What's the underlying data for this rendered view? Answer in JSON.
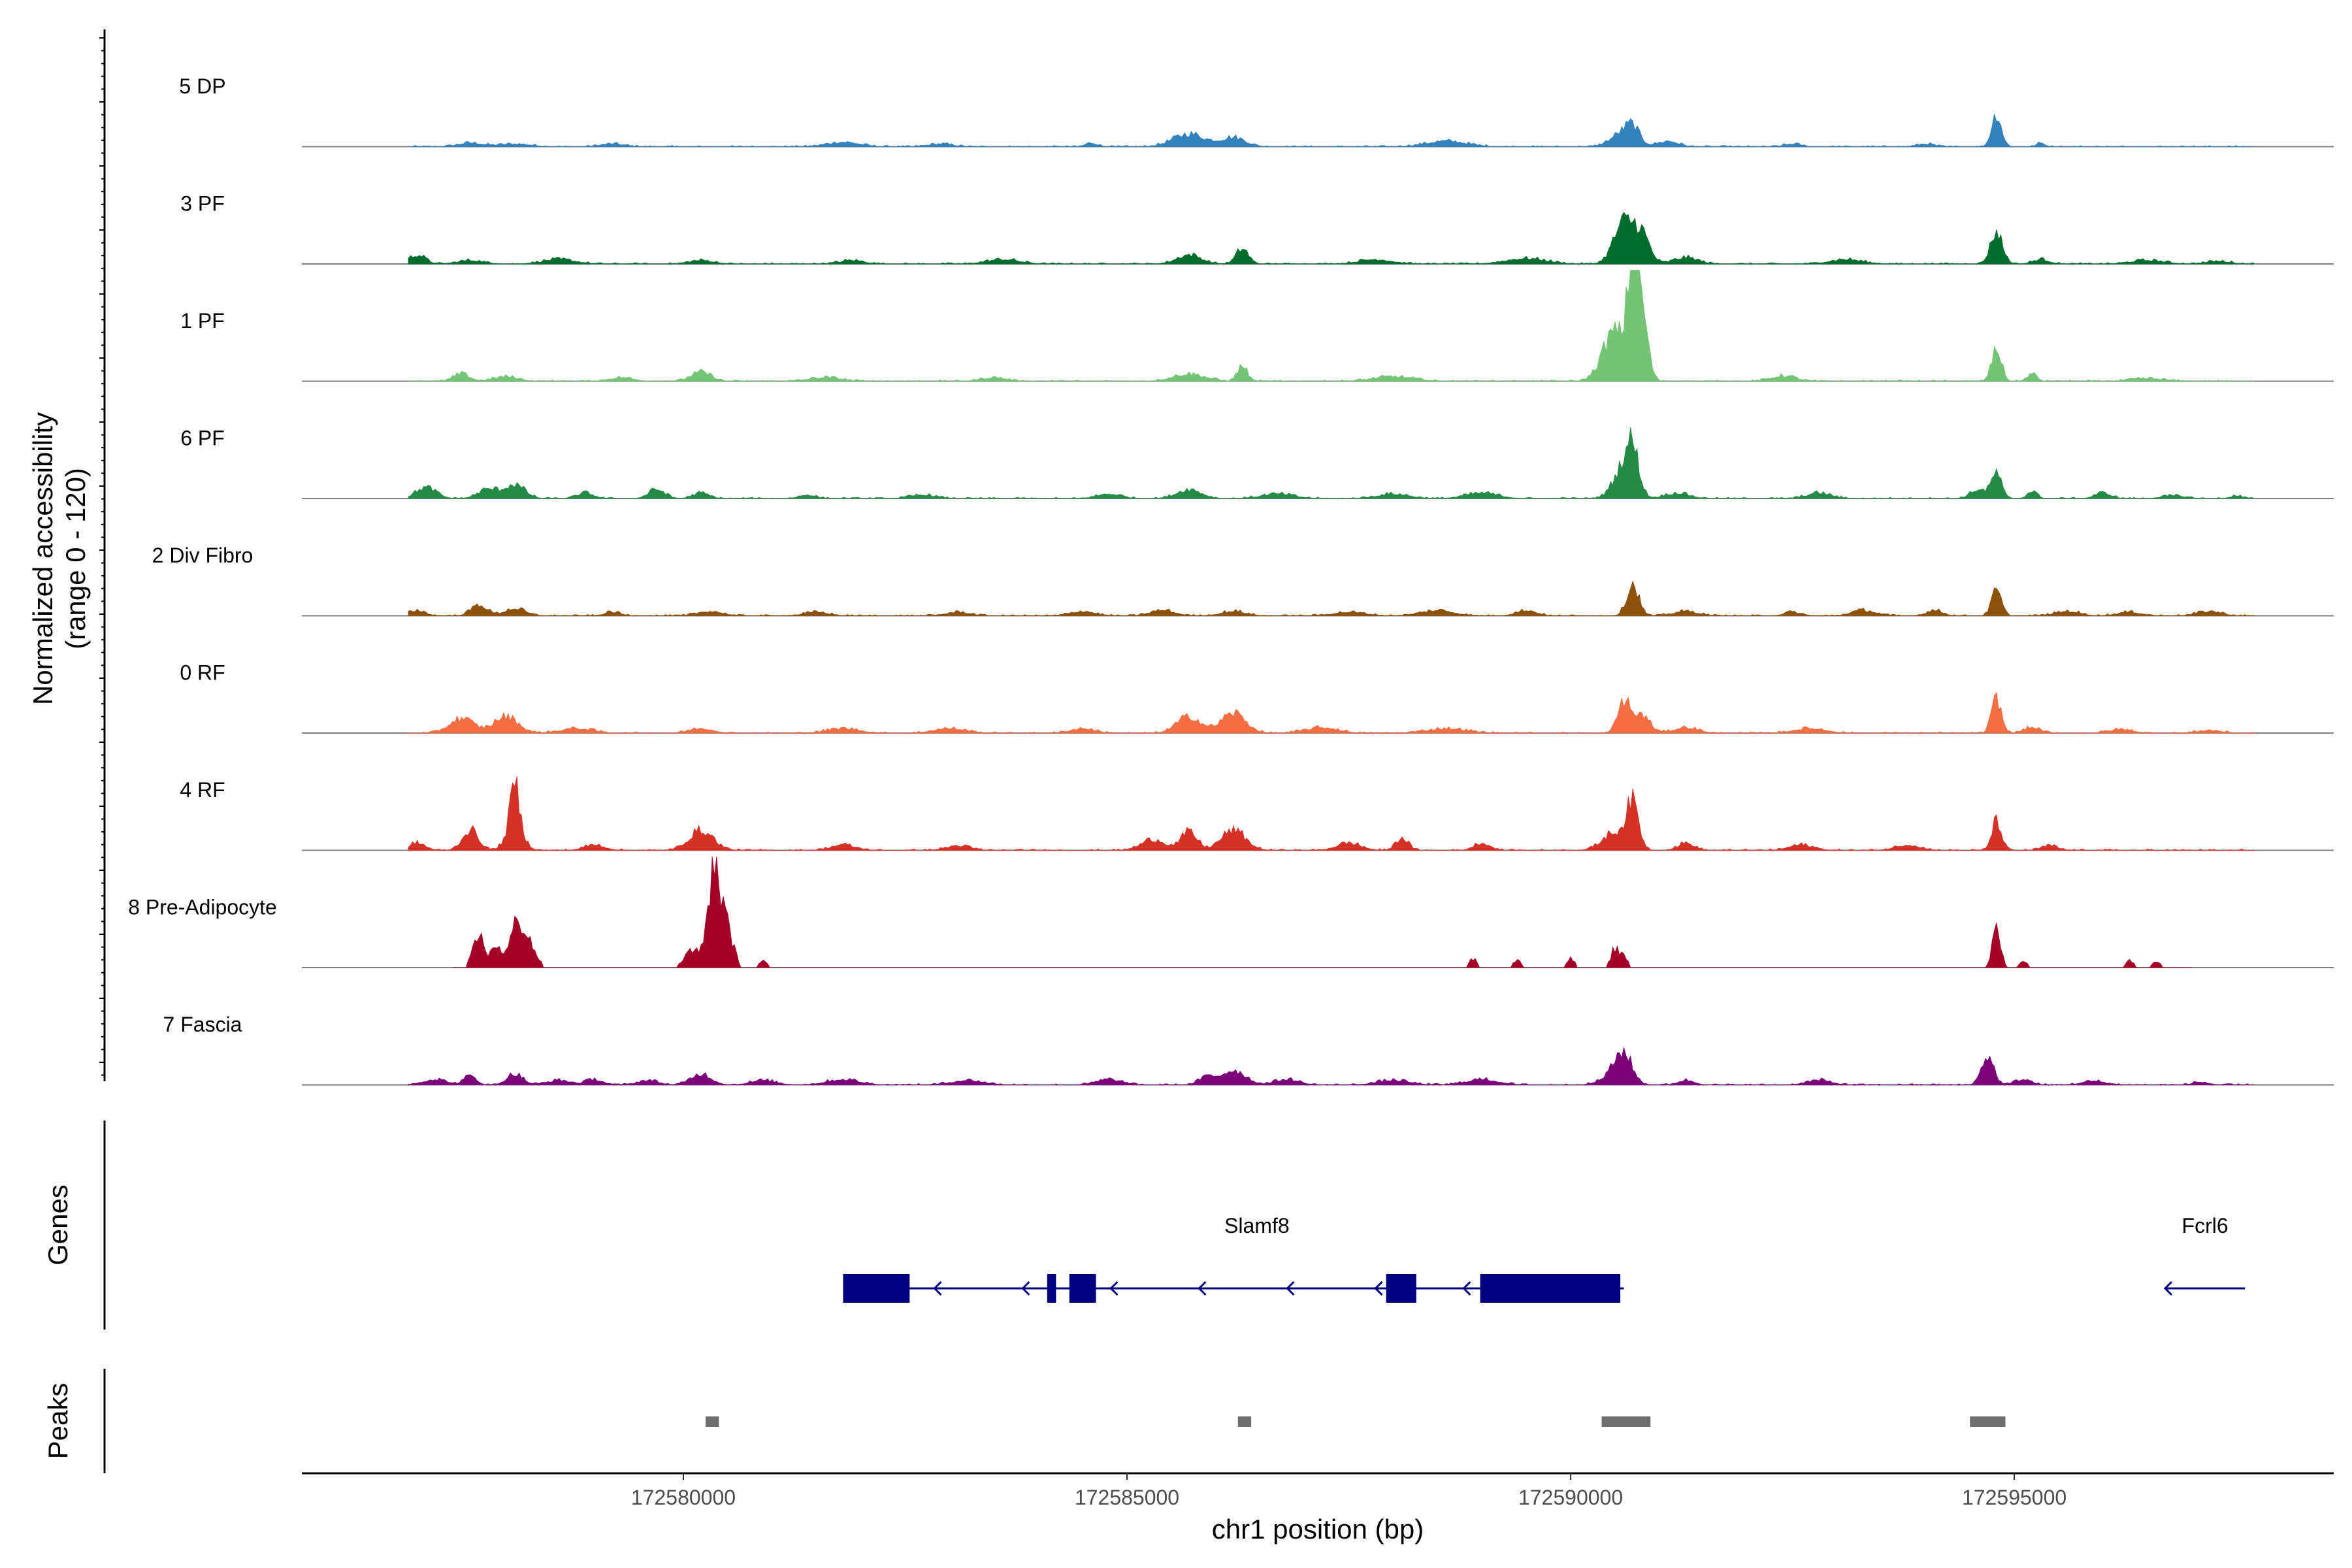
{
  "chart_data": {
    "type": "area",
    "chromosome": "chr1",
    "xlabel": "chr1 position (bp)",
    "ylabel_line1": "Normalized accessibility",
    "ylabel_line2": "(range 0 - 120)",
    "ylim": [
      0,
      120
    ],
    "xlim": [
      172575700,
      172598600
    ],
    "x_ticks": [
      {
        "value": 172580000,
        "label": "172580000"
      },
      {
        "value": 172585000,
        "label": "172585000"
      },
      {
        "value": 172590000,
        "label": "172590000"
      },
      {
        "value": 172595000,
        "label": "172595000"
      }
    ],
    "genes_label": "Genes",
    "peaks_label": "Peaks",
    "tracks": [
      {
        "name": "5 DP",
        "color": "#3182BD",
        "range": [
          176900,
          197700
        ],
        "peaks": [
          [
            177600,
            300,
            4
          ],
          [
            178100,
            400,
            3
          ],
          [
            179200,
            300,
            3
          ],
          [
            181800,
            400,
            5
          ],
          [
            182900,
            300,
            3
          ],
          [
            184600,
            150,
            4
          ],
          [
            185700,
            400,
            14
          ],
          [
            186200,
            300,
            10
          ],
          [
            188600,
            500,
            6
          ],
          [
            190600,
            300,
            16
          ],
          [
            190700,
            150,
            13
          ],
          [
            191100,
            250,
            6
          ],
          [
            192500,
            200,
            3
          ],
          [
            194000,
            200,
            3
          ],
          [
            194800,
            120,
            36
          ],
          [
            195300,
            100,
            4
          ]
        ]
      },
      {
        "name": "3 PF",
        "color": "#006D2C",
        "range": [
          176900,
          197700
        ],
        "peaks": [
          [
            177000,
            200,
            10
          ],
          [
            177600,
            300,
            4
          ],
          [
            178600,
            400,
            5
          ],
          [
            180200,
            300,
            4
          ],
          [
            181900,
            300,
            4
          ],
          [
            183600,
            400,
            5
          ],
          [
            185700,
            300,
            10
          ],
          [
            186300,
            150,
            17
          ],
          [
            187800,
            400,
            5
          ],
          [
            189500,
            500,
            6
          ],
          [
            190600,
            250,
            45
          ],
          [
            190800,
            200,
            30
          ],
          [
            191300,
            300,
            7
          ],
          [
            193100,
            400,
            5
          ],
          [
            194800,
            150,
            35
          ],
          [
            195300,
            200,
            5
          ],
          [
            196500,
            400,
            4
          ],
          [
            197300,
            300,
            3
          ]
        ]
      },
      {
        "name": "1 PF",
        "color": "#74C476",
        "range": [
          176900,
          197700
        ],
        "peaks": [
          [
            177500,
            200,
            8
          ],
          [
            178000,
            300,
            5
          ],
          [
            179300,
            300,
            4
          ],
          [
            180200,
            250,
            10
          ],
          [
            181600,
            400,
            4
          ],
          [
            183500,
            300,
            4
          ],
          [
            185700,
            400,
            8
          ],
          [
            186300,
            120,
            17
          ],
          [
            188000,
            500,
            5
          ],
          [
            190500,
            300,
            55
          ],
          [
            190700,
            120,
            120
          ],
          [
            190800,
            150,
            75
          ],
          [
            192400,
            300,
            6
          ],
          [
            194800,
            120,
            36
          ],
          [
            195200,
            120,
            8
          ],
          [
            196500,
            400,
            3
          ]
        ]
      },
      {
        "name": "6 PF",
        "color": "#238B45",
        "range": [
          176900,
          197700
        ],
        "peaks": [
          [
            177100,
            250,
            12
          ],
          [
            177800,
            250,
            10
          ],
          [
            178100,
            250,
            15
          ],
          [
            178900,
            200,
            6
          ],
          [
            179700,
            200,
            10
          ],
          [
            180200,
            200,
            6
          ],
          [
            181400,
            200,
            4
          ],
          [
            182700,
            300,
            4
          ],
          [
            184800,
            300,
            5
          ],
          [
            185700,
            300,
            10
          ],
          [
            186700,
            400,
            5
          ],
          [
            188000,
            400,
            5
          ],
          [
            189000,
            400,
            6
          ],
          [
            190600,
            250,
            35
          ],
          [
            190700,
            150,
            40
          ],
          [
            191200,
            300,
            6
          ],
          [
            192800,
            300,
            6
          ],
          [
            194600,
            200,
            10
          ],
          [
            194800,
            120,
            28
          ],
          [
            195200,
            120,
            8
          ],
          [
            196000,
            200,
            6
          ],
          [
            196800,
            300,
            3
          ],
          [
            197500,
            150,
            3
          ]
        ]
      },
      {
        "name": "2 Div Fibro",
        "color": "#8C510A",
        "range": [
          176900,
          197700
        ],
        "peaks": [
          [
            177000,
            200,
            6
          ],
          [
            177700,
            200,
            12
          ],
          [
            178100,
            250,
            8
          ],
          [
            179200,
            200,
            4
          ],
          [
            180300,
            300,
            5
          ],
          [
            181500,
            300,
            4
          ],
          [
            183100,
            300,
            4
          ],
          [
            184500,
            300,
            5
          ],
          [
            185400,
            300,
            6
          ],
          [
            186200,
            300,
            5
          ],
          [
            187500,
            400,
            4
          ],
          [
            188500,
            400,
            6
          ],
          [
            189500,
            250,
            6
          ],
          [
            190700,
            150,
            35
          ],
          [
            191300,
            300,
            5
          ],
          [
            192500,
            200,
            4
          ],
          [
            193300,
            300,
            6
          ],
          [
            194100,
            200,
            6
          ],
          [
            194800,
            120,
            28
          ],
          [
            195600,
            300,
            5
          ],
          [
            196300,
            300,
            4
          ],
          [
            197200,
            300,
            5
          ]
        ]
      },
      {
        "name": "0 RF",
        "color": "#F46D43",
        "range": [
          176900,
          197700
        ],
        "peaks": [
          [
            177500,
            300,
            16
          ],
          [
            178000,
            300,
            18
          ],
          [
            178800,
            400,
            5
          ],
          [
            180200,
            300,
            5
          ],
          [
            181800,
            400,
            5
          ],
          [
            183000,
            400,
            5
          ],
          [
            184500,
            300,
            5
          ],
          [
            185700,
            300,
            18
          ],
          [
            186200,
            300,
            22
          ],
          [
            187200,
            400,
            6
          ],
          [
            188600,
            500,
            5
          ],
          [
            190600,
            150,
            35
          ],
          [
            190800,
            200,
            20
          ],
          [
            191300,
            300,
            6
          ],
          [
            192700,
            400,
            5
          ],
          [
            194800,
            120,
            38
          ],
          [
            195200,
            200,
            6
          ],
          [
            196200,
            300,
            4
          ],
          [
            197200,
            300,
            3
          ]
        ]
      },
      {
        "name": "4 RF",
        "color": "#D73027",
        "range": [
          176900,
          197700
        ],
        "peaks": [
          [
            177000,
            200,
            8
          ],
          [
            177600,
            200,
            22
          ],
          [
            178100,
            200,
            30
          ],
          [
            178100,
            100,
            45
          ],
          [
            179000,
            250,
            6
          ],
          [
            180200,
            300,
            22
          ],
          [
            181800,
            300,
            6
          ],
          [
            183100,
            300,
            5
          ],
          [
            185300,
            300,
            12
          ],
          [
            185700,
            200,
            20
          ],
          [
            186200,
            300,
            22
          ],
          [
            187500,
            300,
            8
          ],
          [
            188100,
            150,
            14
          ],
          [
            189000,
            200,
            8
          ],
          [
            190500,
            300,
            20
          ],
          [
            190700,
            150,
            48
          ],
          [
            191300,
            200,
            8
          ],
          [
            192600,
            300,
            6
          ],
          [
            193800,
            300,
            6
          ],
          [
            194800,
            120,
            32
          ],
          [
            195400,
            200,
            5
          ]
        ]
      },
      {
        "name": "8 Pre-Adipocyte",
        "color": "#A50026",
        "range": [
          177400,
          197000
        ],
        "sparse": true,
        "peaks": [
          [
            177700,
            150,
            35
          ],
          [
            177900,
            120,
            25
          ],
          [
            178100,
            150,
            38
          ],
          [
            178200,
            150,
            28
          ],
          [
            178300,
            150,
            15
          ],
          [
            180100,
            200,
            20
          ],
          [
            180350,
            150,
            120
          ],
          [
            180500,
            150,
            40
          ],
          [
            180900,
            100,
            10
          ],
          [
            188900,
            100,
            10
          ],
          [
            189400,
            100,
            8
          ],
          [
            190000,
            100,
            10
          ],
          [
            190500,
            100,
            22
          ],
          [
            190600,
            100,
            12
          ],
          [
            194800,
            100,
            45
          ],
          [
            195100,
            100,
            8
          ],
          [
            196300,
            100,
            8
          ],
          [
            196600,
            100,
            8
          ]
        ]
      },
      {
        "name": "7 Fascia",
        "color": "#7A0177",
        "range": [
          176900,
          197700
        ],
        "peaks": [
          [
            177200,
            300,
            6
          ],
          [
            177600,
            150,
            10
          ],
          [
            178100,
            200,
            12
          ],
          [
            178600,
            300,
            5
          ],
          [
            179000,
            200,
            6
          ],
          [
            179600,
            250,
            5
          ],
          [
            180200,
            250,
            12
          ],
          [
            180900,
            300,
            5
          ],
          [
            181800,
            400,
            6
          ],
          [
            183200,
            400,
            5
          ],
          [
            184800,
            300,
            6
          ],
          [
            185900,
            200,
            8
          ],
          [
            186200,
            300,
            16
          ],
          [
            186800,
            300,
            6
          ],
          [
            188000,
            400,
            5
          ],
          [
            189000,
            400,
            6
          ],
          [
            190600,
            200,
            28
          ],
          [
            190500,
            300,
            12
          ],
          [
            191300,
            200,
            5
          ],
          [
            192800,
            300,
            5
          ],
          [
            194700,
            150,
            32
          ],
          [
            195100,
            200,
            6
          ],
          [
            195900,
            300,
            4
          ],
          [
            197100,
            200,
            3
          ]
        ]
      }
    ],
    "genes": [
      {
        "name": "Slamf8",
        "strand": "-",
        "start": 172581800,
        "end": 172590600,
        "color": "#000080",
        "exons": [
          [
            172581800,
            172582550
          ],
          [
            172584100,
            172584200
          ],
          [
            172584350,
            172584650
          ],
          [
            172587920,
            172588260
          ],
          [
            172588980,
            172590560
          ]
        ]
      },
      {
        "name": "Fcrl6",
        "strand": "-",
        "start": 172596700,
        "end": 172597600,
        "color": "#000080",
        "exons": []
      }
    ],
    "peaks_regions": [
      {
        "start": 172580250,
        "end": 172580400
      },
      {
        "start": 172586250,
        "end": 172586400
      },
      {
        "start": 172590350,
        "end": 172590900
      },
      {
        "start": 172594500,
        "end": 172594900
      }
    ]
  }
}
